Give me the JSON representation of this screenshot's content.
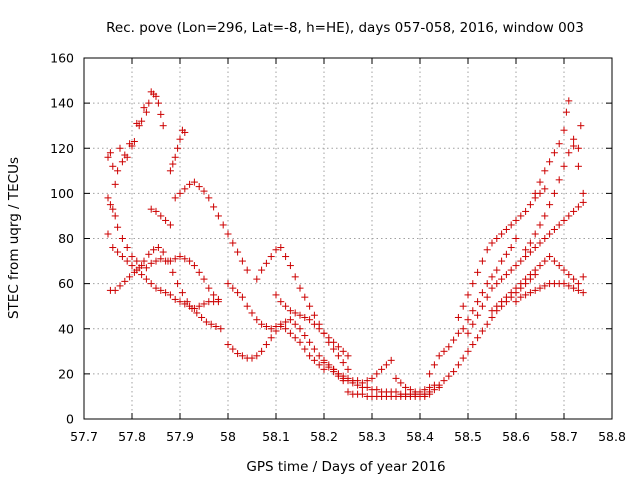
{
  "chart_data": {
    "type": "scatter",
    "title": "Rec. pove (Lon=296, Lat=-8, h=HE), days 057-058, 2016, window 003",
    "xlabel": "GPS time / Days of year 2016",
    "ylabel": "STEC from uqrg / TECUs",
    "xlim": [
      57.7,
      58.8
    ],
    "ylim": [
      0,
      160
    ],
    "xticks": [
      "57.7",
      "57.8",
      "57.9",
      "58",
      "58.1",
      "58.2",
      "58.3",
      "58.4",
      "58.5",
      "58.6",
      "58.7",
      "58.8"
    ],
    "yticks": [
      "0",
      "20",
      "40",
      "60",
      "80",
      "100",
      "120",
      "140",
      "160"
    ],
    "grid": true,
    "marker": "plus",
    "color": "#cc0000",
    "series": [
      {
        "x": [
          57.75,
          57.755,
          57.76,
          57.765,
          57.77,
          57.775,
          57.78,
          57.785,
          57.79,
          57.795,
          57.8,
          57.805,
          57.81,
          57.815,
          57.82,
          57.825,
          57.83,
          57.835,
          57.84,
          57.845,
          57.85,
          57.855,
          57.86,
          57.865
        ],
        "y": [
          116,
          118,
          112,
          104,
          110,
          120,
          114,
          117,
          116,
          122,
          121,
          123,
          131,
          130,
          132,
          138,
          136,
          140,
          145,
          144,
          143,
          140,
          135,
          130
        ]
      },
      {
        "x": [
          57.75,
          57.755,
          57.76,
          57.765,
          57.77,
          57.78,
          57.79,
          57.8,
          57.81,
          57.82,
          57.83,
          57.84,
          57.85,
          57.86,
          57.87,
          57.88,
          57.89,
          57.9,
          57.91,
          57.92,
          57.93,
          57.94,
          57.95,
          57.96,
          57.97,
          57.98
        ],
        "y": [
          98,
          95,
          93,
          90,
          85,
          80,
          76,
          72,
          70,
          68,
          67,
          69,
          70,
          71,
          70,
          70,
          71,
          72,
          71,
          70,
          68,
          65,
          62,
          58,
          55,
          52
        ]
      },
      {
        "x": [
          57.75,
          57.76,
          57.77,
          57.78,
          57.79,
          57.8,
          57.81,
          57.82,
          57.83,
          57.84,
          57.85,
          57.86,
          57.87,
          57.88,
          57.89,
          57.9,
          57.91,
          57.92,
          57.93,
          57.94,
          57.95,
          57.96,
          57.97,
          57.98
        ],
        "y": [
          82,
          76,
          74,
          72,
          70,
          68,
          66,
          64,
          62,
          60,
          58,
          57,
          56,
          55,
          53,
          52,
          51,
          50,
          49,
          50,
          51,
          52,
          52,
          53
        ]
      },
      {
        "x": [
          57.755,
          57.765,
          57.775,
          57.785,
          57.795,
          57.805,
          57.815,
          57.825,
          57.835,
          57.845,
          57.855,
          57.865,
          57.875,
          57.885,
          57.895,
          57.905,
          57.915,
          57.925,
          57.935,
          57.945,
          57.955,
          57.965,
          57.975,
          57.985
        ],
        "y": [
          57,
          57,
          59,
          61,
          63,
          65,
          67,
          70,
          73,
          75,
          76,
          74,
          70,
          65,
          60,
          56,
          52,
          49,
          47,
          45,
          43,
          42,
          41,
          40
        ]
      },
      {
        "x": [
          57.84,
          57.85,
          57.86,
          57.87,
          57.88,
          57.89,
          57.9,
          57.91,
          57.92,
          57.93,
          57.94,
          57.95,
          57.96,
          57.97,
          57.98,
          57.99,
          58.0,
          58.01,
          58.02,
          58.03,
          58.04
        ],
        "y": [
          93,
          92,
          90,
          88,
          86,
          98,
          100,
          102,
          104,
          105,
          103,
          101,
          98,
          94,
          90,
          86,
          82,
          78,
          74,
          70,
          66
        ]
      },
      {
        "x": [
          57.88,
          57.885,
          57.89,
          57.895,
          57.9,
          57.905,
          57.91
        ],
        "y": [
          110,
          113,
          116,
          120,
          124,
          128,
          127
        ]
      },
      {
        "x": [
          58.0,
          58.01,
          58.02,
          58.03,
          58.04,
          58.05,
          58.06,
          58.07,
          58.08,
          58.09,
          58.1,
          58.11,
          58.12,
          58.13,
          58.14,
          58.15,
          58.16,
          58.17,
          58.18,
          58.19,
          58.2,
          58.21,
          58.22,
          58.23,
          58.24
        ],
        "y": [
          60,
          58,
          56,
          54,
          50,
          47,
          44,
          42,
          41,
          40,
          41,
          42,
          43,
          44,
          42,
          40,
          37,
          34,
          31,
          28,
          25,
          23,
          21,
          19,
          17
        ]
      },
      {
        "x": [
          58.0,
          58.01,
          58.02,
          58.03,
          58.04,
          58.05,
          58.06,
          58.07,
          58.08,
          58.09,
          58.1,
          58.11,
          58.12,
          58.13,
          58.14,
          58.15,
          58.16,
          58.17,
          58.18,
          58.19,
          58.2
        ],
        "y": [
          33,
          31,
          29,
          28,
          27,
          27,
          28,
          30,
          33,
          36,
          39,
          41,
          40,
          38,
          36,
          34,
          31,
          28,
          26,
          24,
          22
        ]
      },
      {
        "x": [
          58.06,
          58.07,
          58.08,
          58.09,
          58.1,
          58.11,
          58.12,
          58.13,
          58.14,
          58.15,
          58.16,
          58.17,
          58.18,
          58.19,
          58.2,
          58.21,
          58.22,
          58.23,
          58.24,
          58.25
        ],
        "y": [
          62,
          66,
          69,
          72,
          75,
          76,
          72,
          68,
          63,
          58,
          54,
          50,
          46,
          42,
          38,
          34,
          31,
          28,
          25,
          22
        ]
      },
      {
        "x": [
          58.1,
          58.11,
          58.12,
          58.13,
          58.14,
          58.15,
          58.16,
          58.17,
          58.18,
          58.19,
          58.2,
          58.21,
          58.22,
          58.23,
          58.24,
          58.25
        ],
        "y": [
          55,
          52,
          50,
          48,
          47,
          46,
          45,
          44,
          42,
          40,
          38,
          36,
          34,
          32,
          30,
          28
        ]
      },
      {
        "x": [
          58.2,
          58.21,
          58.22,
          58.23,
          58.24,
          58.25,
          58.26,
          58.27,
          58.28,
          58.29,
          58.3,
          58.31,
          58.32,
          58.33,
          58.34,
          58.35,
          58.36,
          58.37,
          58.38,
          58.39,
          58.4,
          58.41,
          58.42,
          58.43,
          58.44
        ],
        "y": [
          26,
          24,
          22,
          20,
          18,
          17,
          16,
          15,
          14,
          14,
          13,
          13,
          12,
          12,
          12,
          12,
          11,
          11,
          11,
          11,
          11,
          11,
          12,
          13,
          14
        ]
      },
      {
        "x": [
          58.22,
          58.23,
          58.24,
          58.25,
          58.26,
          58.27,
          58.28,
          58.29,
          58.3,
          58.31,
          58.32,
          58.33,
          58.34,
          58.35,
          58.36,
          58.37,
          58.38,
          58.39,
          58.4,
          58.41,
          58.42,
          58.43
        ],
        "y": [
          22,
          20,
          19,
          18,
          17,
          17,
          16,
          17,
          18,
          20,
          22,
          24,
          26,
          18,
          16,
          14,
          13,
          12,
          12,
          13,
          14,
          15
        ]
      },
      {
        "x": [
          58.25,
          58.26,
          58.27,
          58.28,
          58.29,
          58.3,
          58.31,
          58.32,
          58.33,
          58.34,
          58.35,
          58.36,
          58.37,
          58.38,
          58.39,
          58.4,
          58.41,
          58.42
        ],
        "y": [
          12,
          11,
          11,
          11,
          10,
          10,
          10,
          10,
          10,
          10,
          10,
          10,
          10,
          10,
          10,
          10,
          10,
          11
        ]
      },
      {
        "x": [
          58.42,
          58.43,
          58.44,
          58.45,
          58.46,
          58.47,
          58.48,
          58.49,
          58.5,
          58.51,
          58.52,
          58.53,
          58.54,
          58.55,
          58.56,
          58.57,
          58.58,
          58.59,
          58.6
        ],
        "y": [
          20,
          24,
          28,
          30,
          32,
          35,
          38,
          40,
          44,
          48,
          52,
          56,
          60,
          63,
          66,
          70,
          73,
          76,
          80
        ]
      },
      {
        "x": [
          58.44,
          58.45,
          58.46,
          58.47,
          58.48,
          58.49,
          58.5,
          58.51,
          58.52,
          58.53,
          58.54,
          58.55,
          58.56,
          58.57,
          58.58,
          58.59,
          58.6,
          58.61,
          58.62,
          58.63,
          58.64
        ],
        "y": [
          15,
          17,
          19,
          21,
          24,
          27,
          30,
          33,
          36,
          39,
          42,
          45,
          48,
          50,
          52,
          54,
          56,
          58,
          60,
          62,
          64
        ]
      },
      {
        "x": [
          58.48,
          58.49,
          58.5,
          58.51,
          58.52,
          58.53,
          58.54,
          58.55,
          58.56,
          58.57,
          58.58,
          58.59,
          58.6,
          58.61,
          58.62,
          58.63,
          58.64,
          58.65,
          58.66
        ],
        "y": [
          45,
          50,
          55,
          60,
          65,
          70,
          75,
          78,
          80,
          82,
          84,
          86,
          88,
          90,
          92,
          95,
          98,
          100,
          102
        ]
      },
      {
        "x": [
          58.5,
          58.51,
          58.52,
          58.53,
          58.54,
          58.55,
          58.56,
          58.57,
          58.58,
          58.59,
          58.6,
          58.61,
          58.62,
          58.63,
          58.64,
          58.65,
          58.66,
          58.67,
          58.68,
          58.69,
          58.7,
          58.71,
          58.72,
          58.73,
          58.74
        ],
        "y": [
          38,
          42,
          46,
          50,
          54,
          58,
          60,
          62,
          64,
          66,
          68,
          70,
          72,
          74,
          76,
          78,
          80,
          82,
          84,
          86,
          88,
          90,
          92,
          94,
          96
        ]
      },
      {
        "x": [
          58.6,
          58.61,
          58.62,
          58.63,
          58.64,
          58.65,
          58.66,
          58.67,
          58.68,
          58.69,
          58.7,
          58.71,
          58.72,
          58.73,
          58.74
        ],
        "y": [
          52,
          54,
          55,
          56,
          57,
          58,
          59,
          60,
          60,
          60,
          60,
          59,
          58,
          57,
          56
        ]
      },
      {
        "x": [
          58.62,
          58.63,
          58.64,
          58.65,
          58.66,
          58.67,
          58.68,
          58.69,
          58.7,
          58.71,
          58.72,
          58.73,
          58.74
        ],
        "y": [
          75,
          78,
          82,
          86,
          90,
          95,
          100,
          106,
          112,
          118,
          124,
          120,
          100
        ]
      },
      {
        "x": [
          58.64,
          58.65,
          58.66,
          58.67,
          58.68,
          58.69,
          58.7,
          58.705,
          58.71,
          58.72,
          58.73,
          58.735
        ],
        "y": [
          100,
          105,
          110,
          114,
          118,
          122,
          128,
          136,
          141,
          121,
          112,
          130
        ]
      },
      {
        "x": [
          58.55,
          58.56,
          58.57,
          58.58,
          58.59,
          58.6,
          58.61,
          58.62,
          58.63,
          58.64,
          58.65,
          58.66,
          58.67,
          58.68,
          58.69,
          58.7,
          58.71,
          58.72,
          58.73,
          58.74
        ],
        "y": [
          48,
          50,
          52,
          54,
          56,
          58,
          60,
          62,
          64,
          66,
          68,
          70,
          72,
          70,
          68,
          66,
          64,
          62,
          60,
          63
        ]
      }
    ]
  }
}
